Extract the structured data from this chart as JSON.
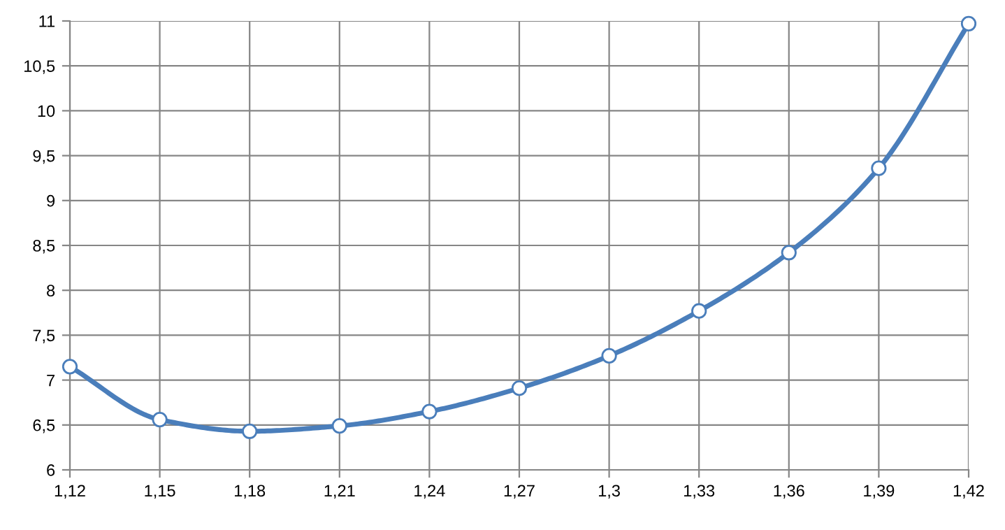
{
  "chart_data": {
    "type": "line",
    "x": [
      1.12,
      1.15,
      1.18,
      1.21,
      1.24,
      1.27,
      1.3,
      1.33,
      1.36,
      1.39,
      1.42
    ],
    "series": [
      {
        "color": "#4a7ebb",
        "values": [
          7.15,
          6.56,
          6.43,
          6.49,
          6.65,
          6.91,
          7.27,
          7.77,
          8.42,
          9.36,
          10.97
        ]
      }
    ],
    "xlim": [
      1.12,
      1.42
    ],
    "xticks": [
      {
        "value": 1.12,
        "label": "1,12"
      },
      {
        "value": 1.15,
        "label": "1,15"
      },
      {
        "value": 1.18,
        "label": "1,18"
      },
      {
        "value": 1.21,
        "label": "1,21"
      },
      {
        "value": 1.24,
        "label": "1,24"
      },
      {
        "value": 1.27,
        "label": "1,27"
      },
      {
        "value": 1.3,
        "label": "1,3"
      },
      {
        "value": 1.33,
        "label": "1,33"
      },
      {
        "value": 1.36,
        "label": "1,36"
      },
      {
        "value": 1.39,
        "label": "1,39"
      },
      {
        "value": 1.42,
        "label": "1,42"
      }
    ],
    "ylim": [
      6,
      11
    ],
    "yticks": [
      6,
      {
        "value": 6.5,
        "label": "6,5"
      },
      7,
      {
        "value": 7.5,
        "label": "7,5"
      },
      8,
      {
        "value": 8.5,
        "label": "8,5"
      },
      9,
      {
        "value": 9.5,
        "label": "9,5"
      },
      10,
      {
        "value": 10.5,
        "label": "10,5"
      },
      11
    ],
    "grid": true,
    "marker": "circle",
    "line_style": "solid",
    "legend": false
  }
}
